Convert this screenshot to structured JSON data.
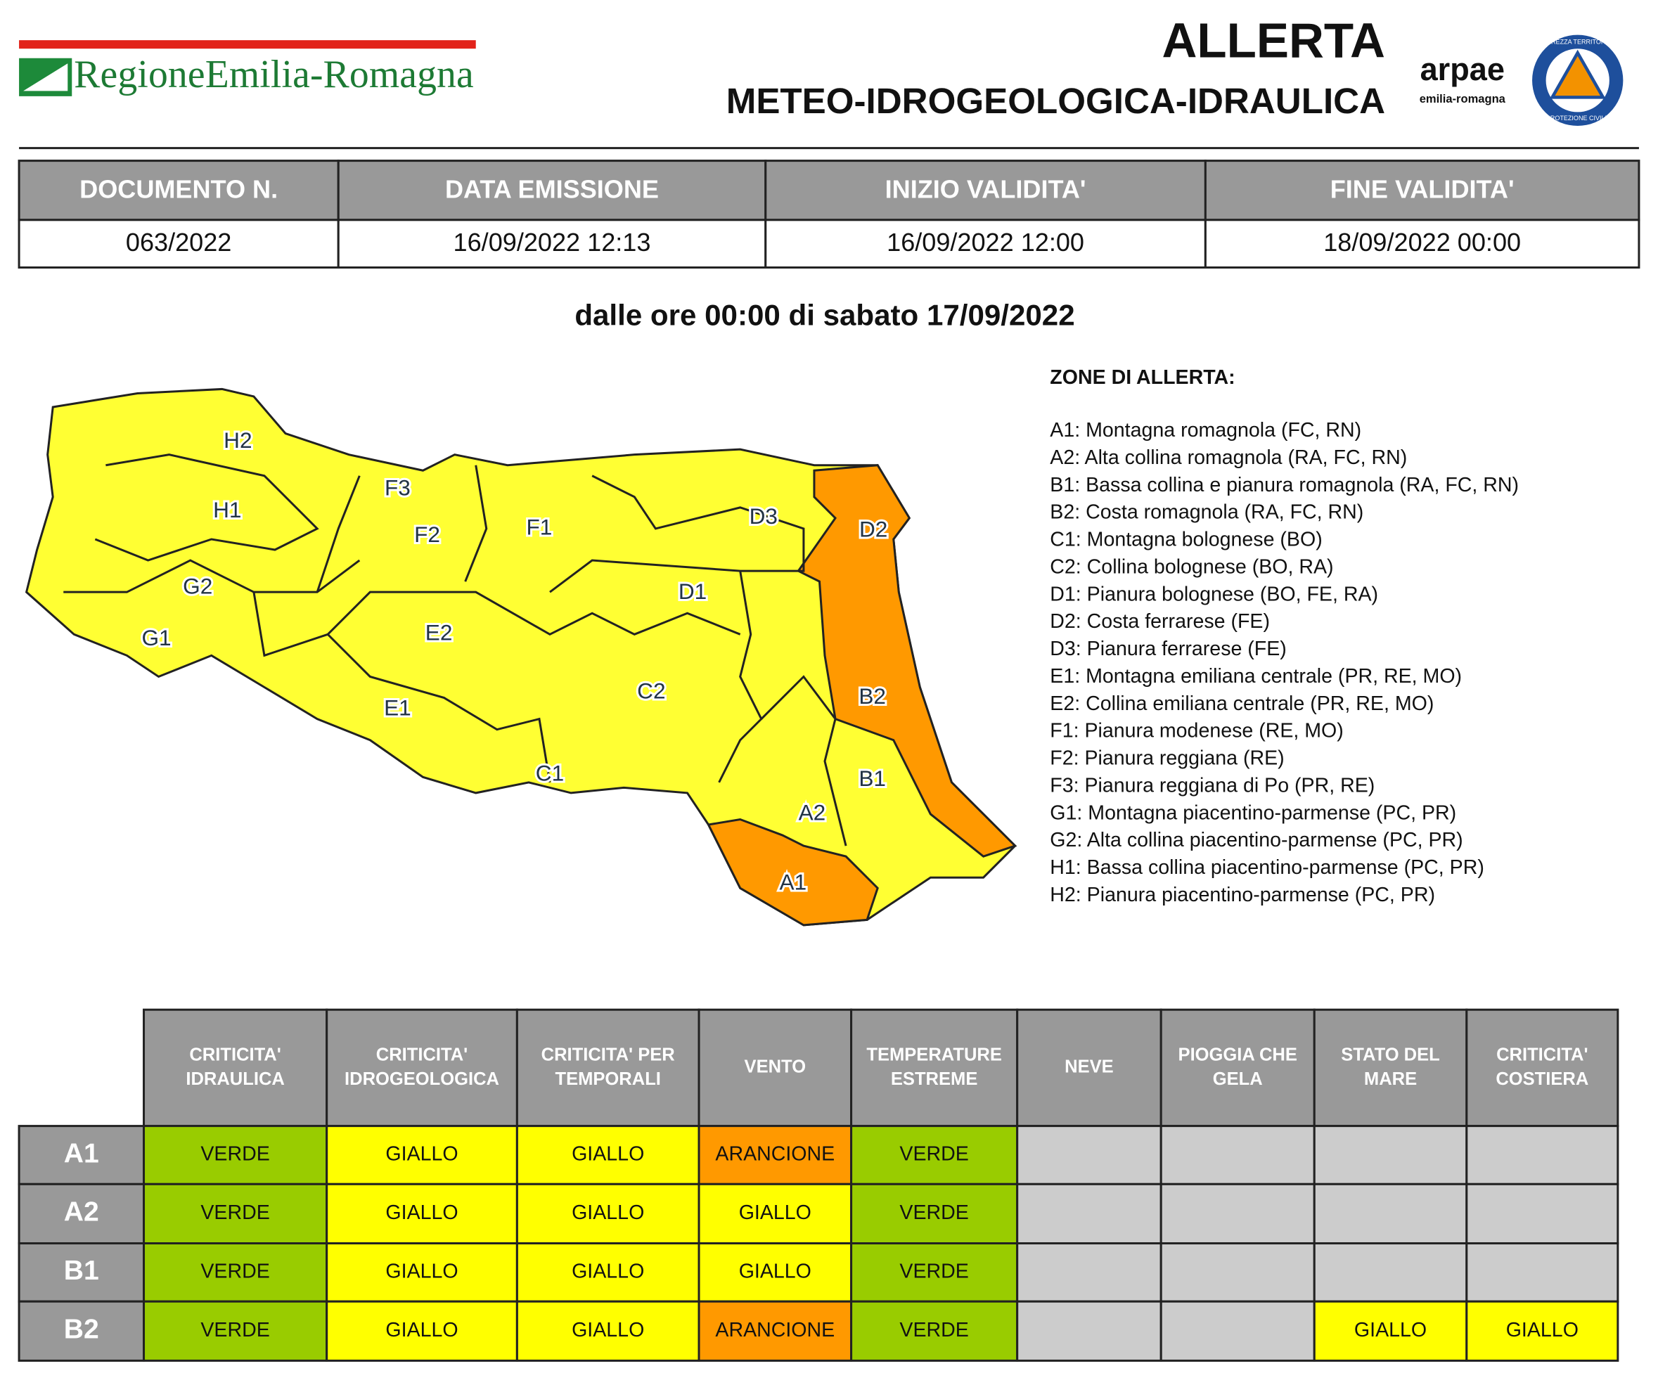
{
  "header": {
    "logo": "RegioneEmilia-Romagna",
    "title": "ALLERTA",
    "subtitle": "METEO-IDROGEOLOGICA-IDRAULICA",
    "arpae": "arpae",
    "arpae_sub": "emilia-romagna",
    "badge_top": "SICUREZZA TERRITORIALE",
    "badge_bottom": "PROTEZIONE CIVILE"
  },
  "info_table": {
    "headers": [
      "DOCUMENTO N.",
      "DATA EMISSIONE",
      "INIZIO VALIDITA'",
      "FINE VALIDITA'"
    ],
    "values": [
      "063/2022",
      "16/09/2022 12:13",
      "16/09/2022 12:00",
      "18/09/2022 00:00"
    ]
  },
  "period": "dalle ore 00:00 di sabato 17/09/2022",
  "zones": {
    "title": "ZONE DI ALLERTA:",
    "items": [
      "A1: Montagna romagnola (FC, RN)",
      "A2: Alta collina romagnola (RA, FC, RN)",
      "B1: Bassa collina e pianura romagnola (RA, FC, RN)",
      "B2: Costa romagnola (RA, FC, RN)",
      "C1: Montagna bolognese (BO)",
      "C2: Collina bolognese (BO, RA)",
      "D1: Pianura bolognese (BO, FE, RA)",
      "D2: Costa ferrarese (FE)",
      "D3: Pianura ferrarese (FE)",
      "E1: Montagna emiliana centrale (PR, RE, MO)",
      "E2: Collina emiliana centrale (PR, RE, MO)",
      "F1: Pianura modenese (RE, MO)",
      "F2: Pianura reggiana (RE)",
      "F3: Pianura reggiana di Po (PR, RE)",
      "G1: Montagna piacentino-parmense (PC, PR)",
      "G2: Alta collina piacentino-parmense (PC, PR)",
      "H1: Bassa collina piacentino-parmense (PC, PR)",
      "H2: Pianura piacentino-parmense (PC, PR)"
    ]
  },
  "map_labels": [
    "H2",
    "H1",
    "G2",
    "G1",
    "F3",
    "F2",
    "F1",
    "E2",
    "E1",
    "D3",
    "D2",
    "D1",
    "C2",
    "C1",
    "B2",
    "B1",
    "A2",
    "A1"
  ],
  "alert_table": {
    "headers": [
      [
        "CRITICITA'",
        "IDRAULICA"
      ],
      [
        "CRITICITA'",
        "IDROGEOLOGICA"
      ],
      [
        "CRITICITA' PER",
        "TEMPORALI"
      ],
      [
        "VENTO"
      ],
      [
        "TEMPERATURE",
        "ESTREME"
      ],
      [
        "NEVE"
      ],
      [
        "PIOGGIA CHE",
        "GELA"
      ],
      [
        "STATO DEL",
        "MARE"
      ],
      [
        "CRITICITA'",
        "COSTIERA"
      ]
    ],
    "rows": [
      {
        "zone": "A1",
        "cells": [
          "VERDE",
          "GIALLO",
          "GIALLO",
          "ARANCIONE",
          "VERDE",
          null,
          null,
          null,
          null
        ]
      },
      {
        "zone": "A2",
        "cells": [
          "VERDE",
          "GIALLO",
          "GIALLO",
          "GIALLO",
          "VERDE",
          null,
          null,
          null,
          null
        ]
      },
      {
        "zone": "B1",
        "cells": [
          "VERDE",
          "GIALLO",
          "GIALLO",
          "GIALLO",
          "VERDE",
          null,
          null,
          null,
          null
        ]
      },
      {
        "zone": "B2",
        "cells": [
          "VERDE",
          "GIALLO",
          "GIALLO",
          "ARANCIONE",
          "VERDE",
          null,
          null,
          "GIALLO",
          "GIALLO"
        ]
      }
    ]
  }
}
